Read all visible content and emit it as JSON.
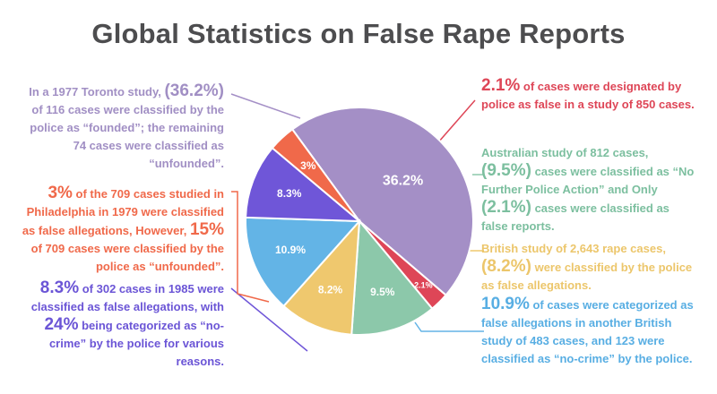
{
  "title": "Global Statistics on False Rape Reports",
  "chart_data": {
    "type": "pie",
    "slices": [
      {
        "label": "36.2%",
        "value": 36.2,
        "color": "#a48fc6"
      },
      {
        "label": "2.1%",
        "value": 2.1,
        "color": "#de4657"
      },
      {
        "label": "9.5%",
        "value": 9.5,
        "color": "#8cc8aa"
      },
      {
        "label": "8.2%",
        "value": 8.2,
        "color": "#efc86e"
      },
      {
        "label": "10.9%",
        "value": 10.9,
        "color": "#63b4e6"
      },
      {
        "label": "8.3%",
        "value": 8.3,
        "color": "#6f56d8"
      },
      {
        "label": "3%",
        "value": 3,
        "color": "#f0694a"
      }
    ]
  },
  "annotations": {
    "toronto": {
      "pre": "In a 1977 Toronto study, ",
      "big": "(36.2%)",
      "post": " of 116 cases were classified by the police as “founded”; the remaining 74 cases were classified as “unfounded”."
    },
    "philadelphia": {
      "big1": "3%",
      "mid": " of the 709 cases studied in Philadelphia in 1979 were classified as false allegations, However, ",
      "big2": "15%",
      "post": " of 709 cases were classified by the police as “unfounded”."
    },
    "study_1985": {
      "big1": "8.3%",
      "mid": " of 302 cases in 1985 were classified as false allegations, with ",
      "big2": "24%",
      "post": " being categorized as “no-crime” by the police for various reasons."
    },
    "study_850": {
      "big": "2.1%",
      "post": " of cases were designated by police as false in a study of 850 cases."
    },
    "australian": {
      "pre": "Australian study of 812 cases, ",
      "big1": "(9.5%)",
      "mid": " cases were classified as “No Further Police Action” and Only ",
      "big2": "(2.1%)",
      "post": " cases were classified as false reports."
    },
    "british_1": {
      "pre": "British study of 2,643 rape cases, ",
      "big": "(8.2%)",
      "post": " were classified by the police as false allegations."
    },
    "british_2": {
      "big": "10.9%",
      "post": " of cases were categorized as false allegations in another British study of 483 cases, and 123 were classified as “no-crime” by the police."
    }
  }
}
